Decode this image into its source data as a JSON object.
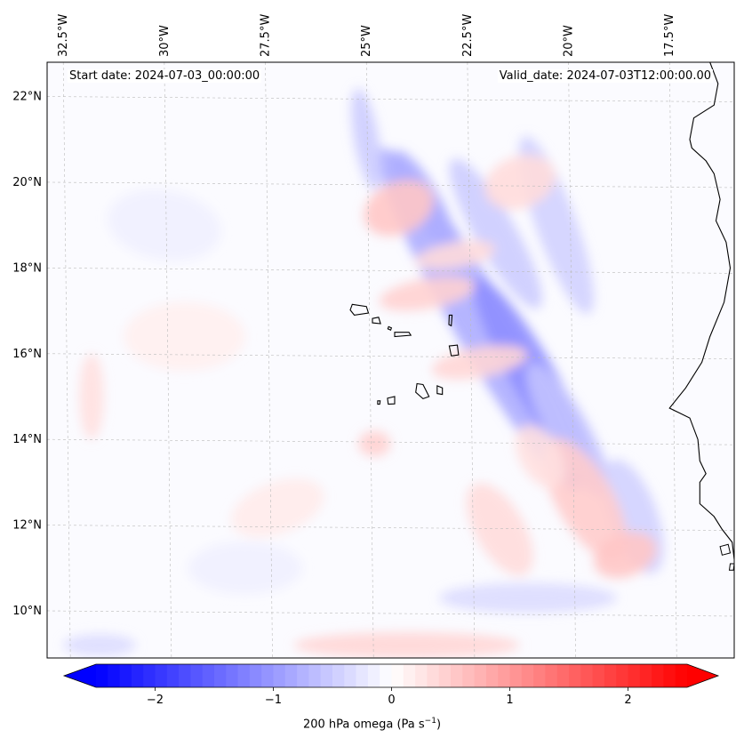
{
  "map": {
    "extent": {
      "lon_min": -32.9,
      "lon_max": -15.9,
      "lat_min": 8.9,
      "lat_max": 22.8
    },
    "lon_ticks": [
      {
        "value": -32.5,
        "label": "32.5°W"
      },
      {
        "value": -30.0,
        "label": "30°W"
      },
      {
        "value": -27.5,
        "label": "27.5°W"
      },
      {
        "value": -25.0,
        "label": "25°W"
      },
      {
        "value": -22.5,
        "label": "22.5°W"
      },
      {
        "value": -20.0,
        "label": "20°W"
      },
      {
        "value": -17.5,
        "label": "17.5°W"
      }
    ],
    "lat_ticks": [
      {
        "value": 10,
        "label": "10°N"
      },
      {
        "value": 12,
        "label": "12°N"
      },
      {
        "value": 14,
        "label": "14°N"
      },
      {
        "value": 16,
        "label": "16°N"
      },
      {
        "value": 18,
        "label": "18°N"
      },
      {
        "value": 20,
        "label": "20°N"
      },
      {
        "value": 22,
        "label": "22°N"
      }
    ],
    "gridlines": true,
    "field_features": [
      {
        "lon": -22.2,
        "lat": 16.8,
        "rx": 0.7,
        "ry": 4.6,
        "rot": -30,
        "value": -0.8
      },
      {
        "lon": -20.9,
        "lat": 15.5,
        "rx": 0.55,
        "ry": 2.6,
        "rot": -30,
        "value": -1.1
      },
      {
        "lon": -20.0,
        "lat": 14.2,
        "rx": 0.5,
        "ry": 1.8,
        "rot": -30,
        "value": -0.6
      },
      {
        "lon": -23.6,
        "lat": 19.6,
        "rx": 0.4,
        "ry": 1.3,
        "rot": -30,
        "value": -0.8
      },
      {
        "lon": -25.0,
        "lat": 21.0,
        "rx": 0.3,
        "ry": 1.2,
        "rot": -10,
        "value": -0.5
      },
      {
        "lon": -21.8,
        "lat": 18.8,
        "rx": 0.5,
        "ry": 2.0,
        "rot": -30,
        "value": -0.5
      },
      {
        "lon": -20.3,
        "lat": 19.0,
        "rx": 0.5,
        "ry": 2.2,
        "rot": -20,
        "value": -0.45
      },
      {
        "lon": -18.4,
        "lat": 12.2,
        "rx": 0.6,
        "ry": 1.4,
        "rot": -20,
        "value": -0.45
      },
      {
        "lon": -21.0,
        "lat": 10.3,
        "rx": 2.2,
        "ry": 0.35,
        "rot": 0,
        "value": -0.35
      },
      {
        "lon": -31.6,
        "lat": 9.2,
        "rx": 0.9,
        "ry": 0.25,
        "rot": 0,
        "value": -0.35
      },
      {
        "lon": -24.2,
        "lat": 19.4,
        "rx": 0.9,
        "ry": 0.6,
        "rot": -25,
        "value": 0.55
      },
      {
        "lon": -23.5,
        "lat": 17.4,
        "rx": 1.2,
        "ry": 0.35,
        "rot": -10,
        "value": 0.45
      },
      {
        "lon": -22.2,
        "lat": 15.8,
        "rx": 1.2,
        "ry": 0.35,
        "rot": -10,
        "value": 0.4
      },
      {
        "lon": -22.8,
        "lat": 18.3,
        "rx": 1.0,
        "ry": 0.3,
        "rot": -10,
        "value": 0.35
      },
      {
        "lon": -21.2,
        "lat": 20.0,
        "rx": 0.9,
        "ry": 0.6,
        "rot": -20,
        "value": 0.35
      },
      {
        "lon": -19.6,
        "lat": 12.6,
        "rx": 0.7,
        "ry": 1.6,
        "rot": -30,
        "value": 0.5
      },
      {
        "lon": -18.6,
        "lat": 11.3,
        "rx": 0.8,
        "ry": 0.5,
        "rot": -20,
        "value": 0.55
      },
      {
        "lon": -21.7,
        "lat": 11.9,
        "rx": 0.6,
        "ry": 1.2,
        "rot": -30,
        "value": 0.35
      },
      {
        "lon": -20.7,
        "lat": 13.6,
        "rx": 0.5,
        "ry": 0.8,
        "rot": -30,
        "value": 0.3
      },
      {
        "lon": -24.8,
        "lat": 13.9,
        "rx": 0.4,
        "ry": 0.3,
        "rot": 0,
        "value": 0.45
      },
      {
        "lon": -24.0,
        "lat": 9.2,
        "rx": 2.8,
        "ry": 0.3,
        "rot": 0,
        "value": 0.4
      },
      {
        "lon": -27.2,
        "lat": 12.4,
        "rx": 1.2,
        "ry": 0.6,
        "rot": -20,
        "value": 0.2
      },
      {
        "lon": -29.5,
        "lat": 16.4,
        "rx": 1.5,
        "ry": 0.8,
        "rot": 0,
        "value": 0.15
      },
      {
        "lon": -31.8,
        "lat": 15.0,
        "rx": 0.3,
        "ry": 1.0,
        "rot": 0,
        "value": 0.3
      },
      {
        "lon": -30.0,
        "lat": 19.0,
        "rx": 1.4,
        "ry": 0.8,
        "rot": 10,
        "value": -0.15
      },
      {
        "lon": -28.0,
        "lat": 11.0,
        "rx": 1.4,
        "ry": 0.6,
        "rot": 0,
        "value": -0.15
      }
    ],
    "islands": [
      [
        [
          -25.35,
          17.15
        ],
        [
          -25.0,
          17.1
        ],
        [
          -24.95,
          16.95
        ],
        [
          -25.3,
          16.9
        ],
        [
          -25.4,
          17.02
        ]
      ],
      [
        [
          -24.85,
          16.82
        ],
        [
          -24.7,
          16.85
        ],
        [
          -24.65,
          16.7
        ],
        [
          -24.85,
          16.72
        ]
      ],
      [
        [
          -24.45,
          16.63
        ],
        [
          -24.38,
          16.6
        ],
        [
          -24.4,
          16.55
        ],
        [
          -24.47,
          16.58
        ]
      ],
      [
        [
          -24.3,
          16.5
        ],
        [
          -23.95,
          16.5
        ],
        [
          -23.9,
          16.43
        ],
        [
          -24.3,
          16.4
        ]
      ],
      [
        [
          -22.95,
          16.9
        ],
        [
          -22.88,
          16.9
        ],
        [
          -22.9,
          16.65
        ],
        [
          -22.96,
          16.68
        ]
      ],
      [
        [
          -22.95,
          16.18
        ],
        [
          -22.75,
          16.2
        ],
        [
          -22.72,
          15.97
        ],
        [
          -22.9,
          15.95
        ]
      ],
      [
        [
          -23.75,
          15.3
        ],
        [
          -23.6,
          15.28
        ],
        [
          -23.45,
          15.0
        ],
        [
          -23.6,
          14.95
        ],
        [
          -23.78,
          15.1
        ]
      ],
      [
        [
          -23.25,
          15.25
        ],
        [
          -23.12,
          15.2
        ],
        [
          -23.12,
          15.05
        ],
        [
          -23.25,
          15.07
        ]
      ],
      [
        [
          -24.48,
          14.96
        ],
        [
          -24.3,
          15.0
        ],
        [
          -24.3,
          14.83
        ],
        [
          -24.46,
          14.82
        ]
      ],
      [
        [
          -24.72,
          14.9
        ],
        [
          -24.66,
          14.9
        ],
        [
          -24.67,
          14.82
        ],
        [
          -24.72,
          14.82
        ]
      ]
    ],
    "coastline": [
      [
        -16.5,
        22.8
      ],
      [
        -16.3,
        22.3
      ],
      [
        -16.4,
        21.8
      ],
      [
        -16.9,
        21.5
      ],
      [
        -17.0,
        21.0
      ],
      [
        -16.95,
        20.8
      ],
      [
        -16.6,
        20.5
      ],
      [
        -16.4,
        20.2
      ],
      [
        -16.25,
        19.6
      ],
      [
        -16.35,
        19.1
      ],
      [
        -16.1,
        18.6
      ],
      [
        -16.0,
        18.0
      ],
      [
        -16.15,
        17.2
      ],
      [
        -16.5,
        16.4
      ],
      [
        -16.7,
        15.8
      ],
      [
        -17.1,
        15.2
      ],
      [
        -17.5,
        14.73
      ],
      [
        -17.0,
        14.5
      ],
      [
        -16.8,
        14.0
      ],
      [
        -16.75,
        13.5
      ],
      [
        -16.6,
        13.2
      ],
      [
        -16.75,
        13.0
      ],
      [
        -16.75,
        12.5
      ],
      [
        -16.4,
        12.2
      ],
      [
        -16.2,
        11.9
      ],
      [
        -15.95,
        11.6
      ],
      [
        -15.9,
        11.2
      ]
    ],
    "coast_islands": [
      [
        [
          -16.25,
          11.5
        ],
        [
          -16.05,
          11.55
        ],
        [
          -16.0,
          11.35
        ],
        [
          -16.2,
          11.3
        ]
      ],
      [
        [
          -16.0,
          11.1
        ],
        [
          -15.9,
          11.1
        ],
        [
          -15.92,
          10.95
        ],
        [
          -16.02,
          10.95
        ]
      ]
    ],
    "start_date": "Start date: 2024-07-03_00:00:00",
    "valid_date": "Valid_date: 2024-07-03T12:00:00.00"
  },
  "colorbar": {
    "vmin": -2.5,
    "vmax": 2.5,
    "ticks": [
      {
        "value": -2,
        "label": "−2"
      },
      {
        "value": -1,
        "label": "−1"
      },
      {
        "value": 0,
        "label": "0"
      },
      {
        "value": 1,
        "label": "1"
      },
      {
        "value": 2,
        "label": "2"
      }
    ],
    "extend": "both",
    "label_text": "200 hPa omega (Pa s",
    "label_exp": "−1",
    "label_close": ")",
    "colormap": "bwr",
    "low_color": "#0000ff",
    "mid_color": "#ffffff",
    "high_color": "#ff0000"
  }
}
